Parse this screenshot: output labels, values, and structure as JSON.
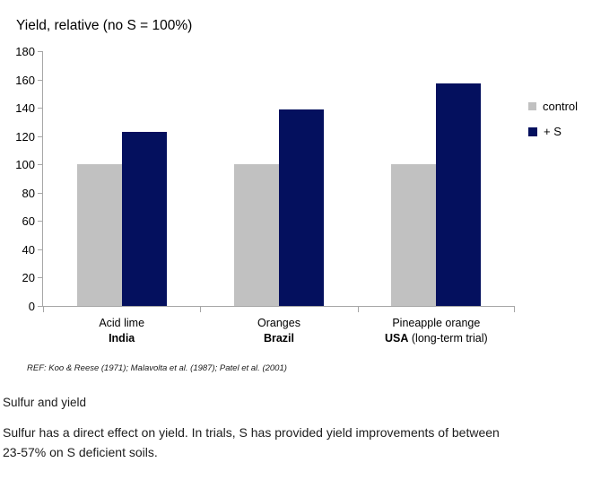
{
  "chart": {
    "title": "Yield, relative (no S = 100%)",
    "ref": "REF: Koo & Reese (1971); Malavolta et al. (1987); Patel et al. (2001)",
    "legend": [
      {
        "label": "control",
        "color": "#c1c1c1"
      },
      {
        "label": "+ S",
        "color": "#04105e"
      }
    ],
    "groups": [
      {
        "line1": "Acid lime",
        "line2_bold": "India",
        "line2_rest": ""
      },
      {
        "line1": "Oranges",
        "line2_bold": "Brazil",
        "line2_rest": ""
      },
      {
        "line1": "Pineapple orange",
        "line2_bold": "USA",
        "line2_rest": " (long-term trial)"
      }
    ]
  },
  "chart_data": {
    "type": "bar",
    "title": "Yield, relative (no S = 100%)",
    "categories": [
      "Acid lime India",
      "Oranges Brazil",
      "Pineapple orange USA (long-term trial)"
    ],
    "series": [
      {
        "name": "control",
        "values": [
          100,
          100,
          100
        ],
        "color": "#c1c1c1"
      },
      {
        "name": "+ S",
        "values": [
          123,
          139,
          157
        ],
        "color": "#04105e"
      }
    ],
    "ylabel": "Yield, relative (no S = 100%)",
    "ylim": [
      0,
      180
    ],
    "ytick_step": 20,
    "grid": false,
    "legend_position": "right",
    "annotation": "REF: Koo & Reese (1971); Malavolta et al. (1987); Patel et al. (2001)"
  },
  "colors": {
    "axis": "#a6a6a6",
    "control_bar": "#c1c1c1",
    "plus_s_bar": "#04105e"
  },
  "caption": {
    "title": "Sulfur and yield",
    "line1": "Sulfur has a direct effect on yield. In trials, S has provided yield improvements of between",
    "line2": "23-57% on S deficient soils."
  }
}
